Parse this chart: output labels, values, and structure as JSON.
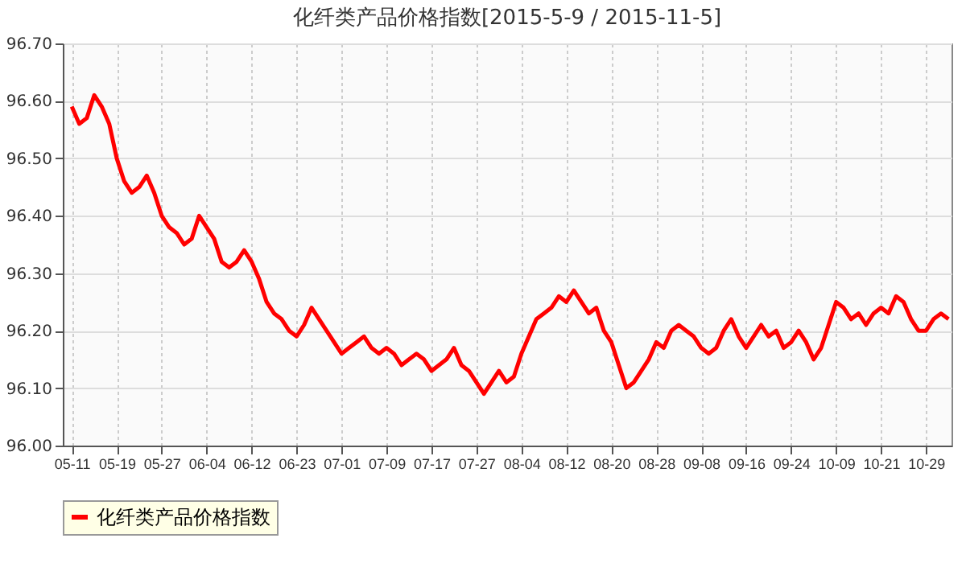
{
  "chart_data": {
    "type": "line",
    "title": "化纤类产品价格指数[2015-5-9 / 2015-11-5]",
    "categories": [
      "05-11",
      null,
      null,
      null,
      null,
      null,
      "05-19",
      null,
      null,
      null,
      null,
      null,
      "05-27",
      null,
      null,
      null,
      null,
      null,
      "06-04",
      null,
      null,
      null,
      null,
      null,
      "06-12",
      null,
      null,
      null,
      null,
      null,
      "06-23",
      null,
      null,
      null,
      null,
      null,
      "07-01",
      null,
      null,
      null,
      null,
      null,
      "07-09",
      null,
      null,
      null,
      null,
      null,
      "07-17",
      null,
      null,
      null,
      null,
      null,
      "07-27",
      null,
      null,
      null,
      null,
      null,
      "08-04",
      null,
      null,
      null,
      null,
      null,
      "08-12",
      null,
      null,
      null,
      null,
      null,
      "08-20",
      null,
      null,
      null,
      null,
      null,
      "08-28",
      null,
      null,
      null,
      null,
      null,
      "09-08",
      null,
      null,
      null,
      null,
      null,
      "09-16",
      null,
      null,
      null,
      null,
      null,
      "09-24",
      null,
      null,
      null,
      null,
      null,
      "10-09",
      null,
      null,
      null,
      null,
      null,
      "10-21",
      null,
      null,
      null,
      null,
      null,
      "10-29",
      null,
      null,
      null
    ],
    "series": [
      {
        "name": "化纤类产品价格指数",
        "color": "#ff0000",
        "values": [
          96.59,
          96.56,
          96.57,
          96.61,
          96.59,
          96.56,
          96.5,
          96.46,
          96.44,
          96.45,
          96.47,
          96.44,
          96.4,
          96.38,
          96.37,
          96.35,
          96.36,
          96.4,
          96.38,
          96.36,
          96.32,
          96.31,
          96.32,
          96.34,
          96.32,
          96.29,
          96.25,
          96.23,
          96.22,
          96.2,
          96.19,
          96.21,
          96.24,
          96.22,
          96.2,
          96.18,
          96.16,
          96.17,
          96.18,
          96.19,
          96.17,
          96.16,
          96.17,
          96.16,
          96.14,
          96.15,
          96.16,
          96.15,
          96.13,
          96.14,
          96.15,
          96.17,
          96.14,
          96.13,
          96.11,
          96.09,
          96.11,
          96.13,
          96.11,
          96.12,
          96.16,
          96.19,
          96.22,
          96.23,
          96.24,
          96.26,
          96.25,
          96.27,
          96.25,
          96.23,
          96.24,
          96.2,
          96.18,
          96.14,
          96.1,
          96.11,
          96.13,
          96.15,
          96.18,
          96.17,
          96.2,
          96.21,
          96.2,
          96.19,
          96.17,
          96.16,
          96.17,
          96.2,
          96.22,
          96.19,
          96.17,
          96.19,
          96.21,
          96.19,
          96.2,
          96.17,
          96.18,
          96.2,
          96.18,
          96.15,
          96.17,
          96.21,
          96.25,
          96.24,
          96.22,
          96.23,
          96.21,
          96.23,
          96.24,
          96.23,
          96.26,
          96.25,
          96.22,
          96.2,
          96.2,
          96.22,
          96.23,
          96.22
        ]
      }
    ],
    "ylim": [
      96.0,
      96.7
    ],
    "yticks": [
      {
        "value": 96.0,
        "label": "96.00"
      },
      {
        "value": 96.1,
        "label": "96.10"
      },
      {
        "value": 96.2,
        "label": "96.20"
      },
      {
        "value": 96.3,
        "label": "96.30"
      },
      {
        "value": 96.4,
        "label": "96.40"
      },
      {
        "value": 96.5,
        "label": "96.50"
      },
      {
        "value": 96.6,
        "label": "96.60"
      },
      {
        "value": 96.7,
        "label": "96.70"
      }
    ],
    "grid": true,
    "legend": "bottom",
    "marker": "none",
    "line_style": "solid"
  }
}
